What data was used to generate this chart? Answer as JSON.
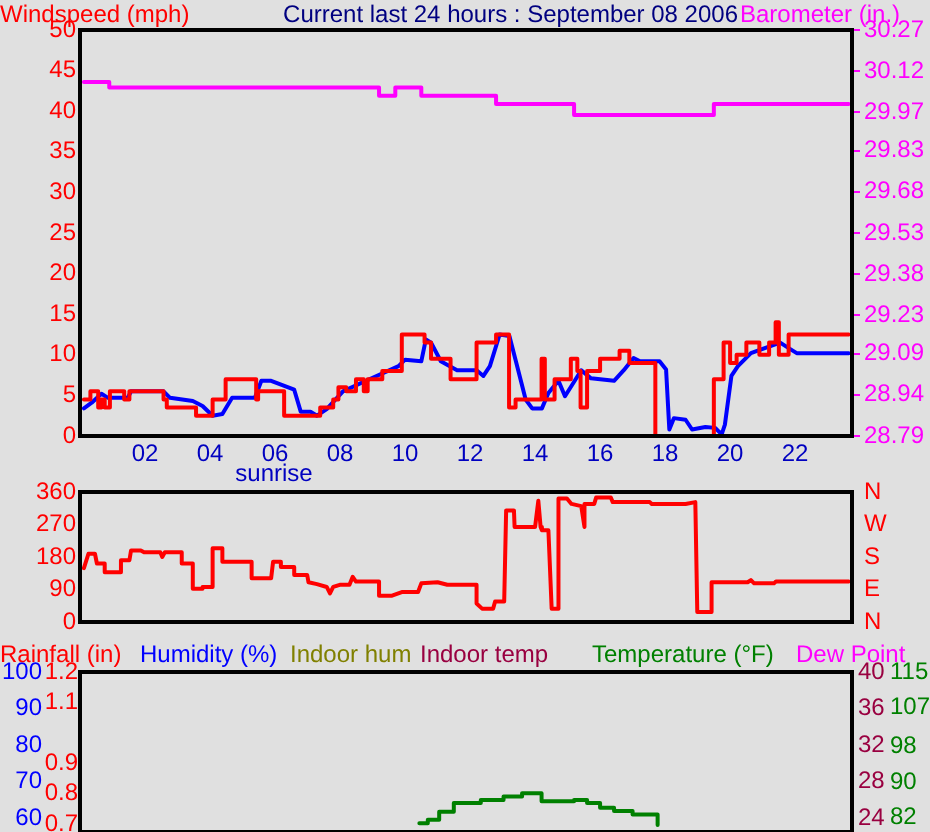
{
  "chart_data": [
    {
      "type": "line",
      "title": "Current last 24 hours : September 08 2006",
      "ylabel": "Windspeed (mph)",
      "y2label": "Barometer (in.)",
      "xlim": [
        0,
        23.75
      ],
      "xticks": [
        {
          "value": 2,
          "label": "02"
        },
        {
          "value": 4,
          "label": "04"
        },
        {
          "value": 6,
          "label": "06"
        },
        {
          "value": 8,
          "label": "08"
        },
        {
          "value": 10,
          "label": "10"
        },
        {
          "value": 12,
          "label": "12"
        },
        {
          "value": 14,
          "label": "14"
        },
        {
          "value": 16,
          "label": "16"
        },
        {
          "value": 18,
          "label": "18"
        },
        {
          "value": 20,
          "label": "20"
        },
        {
          "value": 22,
          "label": "22"
        }
      ],
      "ylim": [
        0,
        50
      ],
      "yticks": [
        0,
        5,
        10,
        15,
        20,
        25,
        30,
        35,
        40,
        45,
        50
      ],
      "y2lim": [
        28.79,
        30.27
      ],
      "y2ticks": [
        28.79,
        28.94,
        29.09,
        29.23,
        29.38,
        29.53,
        29.68,
        29.83,
        29.97,
        30.12,
        30.27
      ],
      "annotations": [
        "sunrise"
      ],
      "series": [
        {
          "type": "step",
          "color": "#ff0000",
          "x": [
            0.12,
            0.32,
            0.56,
            0.66,
            0.76,
            0.92,
            1.36,
            1.52,
            2.57,
            2.67,
            3.57,
            4.08,
            4.48,
            5.42,
            5.48,
            6.28,
            7.39,
            7.79,
            7.95,
            8.19,
            8.49,
            8.73,
            8.85,
            9.3,
            9.9,
            10.6,
            10.8,
            11.4,
            12.2,
            12.8,
            13.2,
            13.4,
            14.2,
            14.3,
            14.6,
            15.1,
            15.3,
            15.4,
            15.6,
            16.0,
            16.6,
            16.9,
            17.7,
            19.5,
            19.8,
            20.0,
            20.2,
            20.5,
            20.9,
            21.2,
            21.4,
            21.5,
            21.8,
            23.65
          ],
          "values": [
            4.5,
            5.5,
            3.5,
            4.5,
            3.5,
            5.5,
            4.5,
            5.5,
            4.5,
            3.5,
            2.5,
            4.5,
            7,
            4.5,
            5.5,
            2.5,
            3.5,
            4.5,
            6,
            5.5,
            7,
            5.5,
            7,
            8,
            12.5,
            11.5,
            9.5,
            7,
            11.5,
            12.5,
            3.5,
            4.5,
            9.5,
            4.5,
            7,
            9.5,
            8,
            3.5,
            8,
            9.5,
            10.5,
            9,
            0,
            7,
            11.5,
            9,
            10,
            11.5,
            10,
            11.5,
            14,
            10,
            12.5,
            12.5
          ]
        },
        {
          "type": "line",
          "color": "#0000ff",
          "x": [
            0.12,
            0.36,
            0.66,
            0.86,
            1.47,
            1.57,
            2.57,
            2.77,
            3.47,
            3.77,
            4.08,
            4.38,
            4.68,
            5.38,
            5.58,
            5.88,
            6.59,
            6.79,
            7.09,
            7.29,
            7.59,
            8.09,
            8.8,
            9.8,
            10.0,
            10.5,
            10.64,
            10.8,
            11.1,
            11.6,
            12.2,
            12.41,
            12.61,
            12.91,
            13.21,
            13.41,
            13.71,
            13.91,
            14.21,
            14.41,
            14.72,
            14.92,
            15.22,
            15.42,
            15.72,
            16.43,
            16.73,
            17.03,
            17.23,
            17.83,
            18.03,
            18.13,
            18.27,
            18.63,
            18.83,
            19.24,
            19.54,
            19.74,
            19.84,
            20.04,
            20.24,
            20.64,
            21.54,
            21.85,
            22.05,
            23.65
          ],
          "values": [
            3.4,
            4.1,
            5.2,
            4.7,
            4.7,
            5.5,
            5.5,
            4.7,
            4.3,
            3.7,
            2.5,
            2.7,
            4.7,
            4.7,
            6.8,
            6.8,
            5.7,
            3.0,
            3.0,
            2.5,
            3.3,
            5.5,
            6.8,
            8.6,
            9.4,
            9.2,
            11.9,
            11.5,
            9.2,
            8.1,
            8.1,
            7.4,
            8.6,
            12.5,
            12.3,
            9.2,
            4.5,
            3.4,
            3.4,
            5.3,
            6.8,
            4.9,
            6.8,
            8.1,
            7.1,
            6.8,
            8.1,
            9.6,
            9.2,
            9.2,
            8.2,
            0.8,
            2.2,
            2.0,
            0.8,
            1.1,
            1.0,
            0.2,
            1.4,
            7.4,
            8.6,
            10.2,
            11.5,
            10.7,
            10.2,
            10.2
          ]
        },
        {
          "type": "step",
          "color": "#ff00ff",
          "axis": "y2",
          "x": [
            0.12,
            0.9,
            9.2,
            9.7,
            10.5,
            12.8,
            15.2,
            19.5,
            23.65
          ],
          "values": [
            30.08,
            30.06,
            30.03,
            30.06,
            30.03,
            30.0,
            29.96,
            30.0,
            30.0
          ]
        }
      ]
    },
    {
      "type": "line",
      "xlim": [
        0,
        23.75
      ],
      "ylim": [
        0,
        360
      ],
      "yticks": [
        0,
        90,
        180,
        270,
        360
      ],
      "annotations": [
        "N",
        "E",
        "S",
        "W",
        "N"
      ],
      "tick_labels": "y",
      "series": [
        {
          "color": "#ff0000",
          "x": [
            0.12,
            0.26,
            0.46,
            0.52,
            0.76,
            0.76,
            1.26,
            1.26,
            1.52,
            1.57,
            1.87,
            1.97,
            2.47,
            2.53,
            2.61,
            3.13,
            3.13,
            3.47,
            3.47,
            3.77,
            3.77,
            4.08,
            4.08,
            4.38,
            4.38,
            5.28,
            5.28,
            5.88,
            5.94,
            6.18,
            6.18,
            6.59,
            6.59,
            6.99,
            7.03,
            7.29,
            7.59,
            7.69,
            7.79,
            7.99,
            8.29,
            8.39,
            8.49,
            9.2,
            9.2,
            9.6,
            9.9,
            10.4,
            10.5,
            11.0,
            11.3,
            12.2,
            12.2,
            12.37,
            12.71,
            12.77,
            13.05,
            13.11,
            13.35,
            13.37,
            14.0,
            14.1,
            14.17,
            14.21,
            14.41,
            14.51,
            14.72,
            14.72,
            14.98,
            15.12,
            15.42,
            15.52,
            15.52,
            15.82,
            15.88,
            16.33,
            16.39,
            17.53,
            17.59,
            18.63,
            18.93,
            18.99,
            19.39,
            19.43,
            20.54,
            20.64,
            20.74,
            21.35,
            21.41,
            23.65
          ],
          "values": [
            149,
            189,
            189,
            162,
            162,
            138,
            138,
            171,
            171,
            198,
            198,
            193,
            193,
            180,
            193,
            193,
            162,
            162,
            92,
            92,
            97,
            97,
            204,
            204,
            167,
            167,
            121,
            121,
            167,
            167,
            152,
            152,
            130,
            130,
            110,
            105,
            97,
            79,
            97,
            103,
            103,
            125,
            112,
            112,
            73,
            73,
            83,
            83,
            107,
            110,
            103,
            103,
            51,
            37,
            37,
            57,
            57,
            309,
            309,
            263,
            263,
            336,
            263,
            254,
            254,
            37,
            37,
            342,
            342,
            327,
            321,
            263,
            327,
            327,
            345,
            345,
            332,
            332,
            327,
            327,
            332,
            28,
            28,
            110,
            110,
            116,
            107,
            107,
            112,
            112
          ]
        }
      ]
    },
    {
      "type": "line",
      "xlim": [
        0,
        23.75
      ],
      "y3label": "Temperature (°F)",
      "annotations": [
        "Rainfall (in)",
        "Humidity (%)",
        "Indoor hum",
        "Indoor temp",
        "Dew Point",
        "40",
        "36",
        "32",
        "28",
        "24"
      ],
      "ylim": [
        56.3,
        100
      ],
      "yticks": [
        60,
        70,
        80,
        90,
        100
      ],
      "y2lim": [
        0.674,
        1.2
      ],
      "y2ticks": [
        0.7,
        0.8,
        0.9,
        1.1,
        1.2
      ],
      "y3lim": [
        78.6,
        115
      ],
      "y3ticks": [
        82,
        90,
        98,
        107,
        115
      ],
      "tick_labels": [
        "y",
        "y2",
        "y3"
      ],
      "series": [
        {
          "type": "step",
          "color": "#008000",
          "axis": "y3",
          "x": [
            10.44,
            10.7,
            11.05,
            11.5,
            12.33,
            13.03,
            13.6,
            14.2,
            15.2,
            15.6,
            16.0,
            16.43,
            17.0,
            17.77
          ],
          "values": [
            80.6,
            81.4,
            83.2,
            85.2,
            85.9,
            86.7,
            87.4,
            85.6,
            85.9,
            85.2,
            84.1,
            83.4,
            82.6,
            80.2
          ]
        }
      ]
    }
  ]
}
